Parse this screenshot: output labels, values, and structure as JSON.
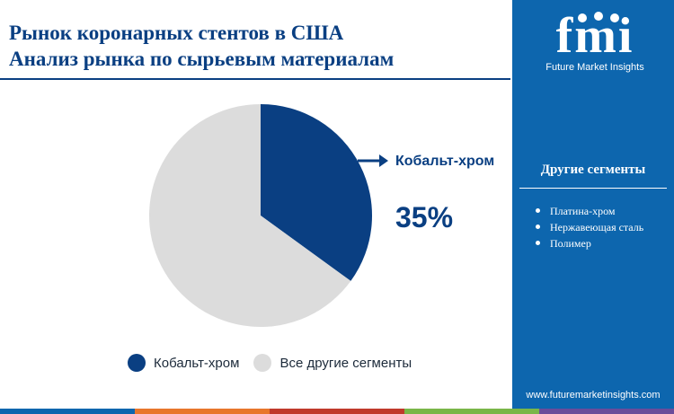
{
  "title": {
    "line1": "Рынок коронарных стентов в США",
    "line2": "Анализ рынка по сырьевым материалам"
  },
  "chart_data": {
    "type": "pie",
    "slices": [
      {
        "name": "Кобальт-хром",
        "value": 35,
        "color": "#0a3f82"
      },
      {
        "name": "Все другие сегменты",
        "value": 65,
        "color": "#dcdcdc"
      }
    ],
    "callout": {
      "label": "Кобальт-хром",
      "value": "35%"
    },
    "legend": {
      "placement": "bottom",
      "items": [
        {
          "label": "Кобальт-хром",
          "color": "#0a3f82"
        },
        {
          "label": "Все другие сегменты",
          "color": "#dcdcdc"
        }
      ]
    }
  },
  "sidebar": {
    "logo_text": "fmi",
    "logo_subtitle": "Future Market Insights",
    "heading": "Другие сегменты",
    "items": [
      "Платина-хром",
      "Нержавеющая сталь",
      "Полимер"
    ],
    "url": "www.futuremarketinsights.com",
    "background": "#0d66ae"
  },
  "bottom_strip_colors": [
    "#0d66ae",
    "#e8762c",
    "#c0392b",
    "#7ab648",
    "#6b4c9a"
  ]
}
